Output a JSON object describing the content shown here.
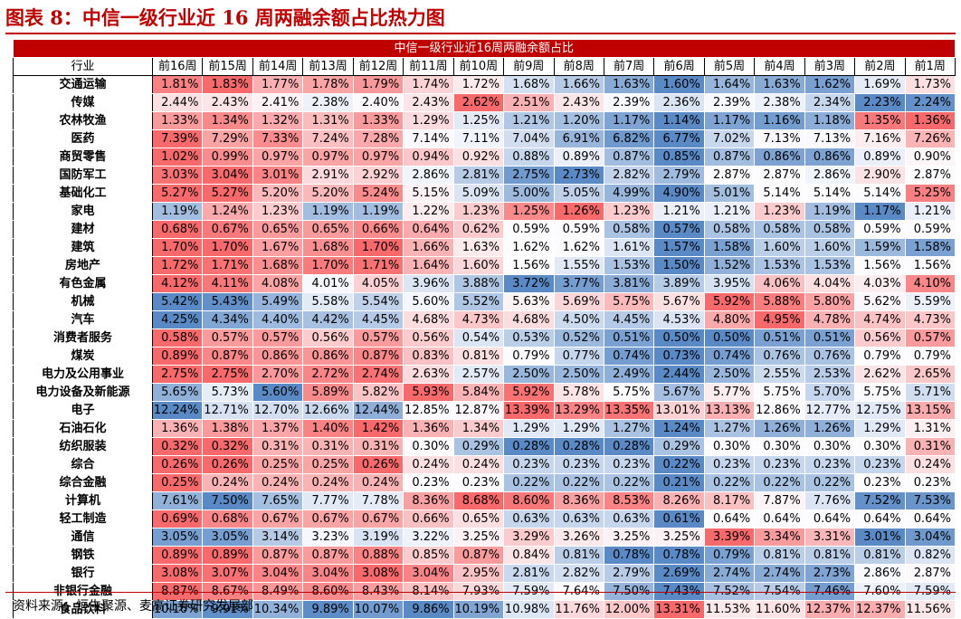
{
  "figure": {
    "title": "图表 8：中信一级行业近 16 周两融余额占比热力图",
    "source": "资料来源：恒生聚源、麦高证券研究发展部"
  },
  "chart_data": {
    "type": "heatmap",
    "title": "中信一级行业近16周两融余额占比",
    "row_header": "行业",
    "columns": [
      "前16周",
      "前15周",
      "前14周",
      "前13周",
      "前12周",
      "前11周",
      "前10周",
      "前9周",
      "前8周",
      "前7周",
      "前6周",
      "前5周",
      "前4周",
      "前3周",
      "前2周",
      "前1周"
    ],
    "color_scale": {
      "high": "#f8696b",
      "mid": "#fcfcff",
      "low": "#5a8ac6",
      "basis": "per-row"
    },
    "rows": [
      {
        "name": "交通运输",
        "values": [
          "1.81%",
          "1.83%",
          "1.77%",
          "1.78%",
          "1.79%",
          "1.74%",
          "1.72%",
          "1.68%",
          "1.66%",
          "1.63%",
          "1.60%",
          "1.64%",
          "1.63%",
          "1.62%",
          "1.69%",
          "1.73%"
        ]
      },
      {
        "name": "传媒",
        "values": [
          "2.44%",
          "2.43%",
          "2.41%",
          "2.38%",
          "2.40%",
          "2.43%",
          "2.62%",
          "2.51%",
          "2.43%",
          "2.39%",
          "2.36%",
          "2.39%",
          "2.38%",
          "2.34%",
          "2.23%",
          "2.24%"
        ]
      },
      {
        "name": "农林牧渔",
        "values": [
          "1.33%",
          "1.34%",
          "1.32%",
          "1.31%",
          "1.33%",
          "1.29%",
          "1.25%",
          "1.21%",
          "1.20%",
          "1.17%",
          "1.14%",
          "1.17%",
          "1.16%",
          "1.18%",
          "1.35%",
          "1.36%"
        ]
      },
      {
        "name": "医药",
        "values": [
          "7.39%",
          "7.29%",
          "7.33%",
          "7.24%",
          "7.28%",
          "7.14%",
          "7.11%",
          "7.04%",
          "6.91%",
          "6.82%",
          "6.77%",
          "7.02%",
          "7.13%",
          "7.13%",
          "7.16%",
          "7.26%"
        ]
      },
      {
        "name": "商贸零售",
        "values": [
          "1.02%",
          "0.99%",
          "0.97%",
          "0.97%",
          "0.97%",
          "0.94%",
          "0.92%",
          "0.88%",
          "0.89%",
          "0.87%",
          "0.85%",
          "0.87%",
          "0.86%",
          "0.86%",
          "0.89%",
          "0.90%"
        ]
      },
      {
        "name": "国防军工",
        "values": [
          "3.03%",
          "3.04%",
          "3.01%",
          "2.91%",
          "2.92%",
          "2.86%",
          "2.81%",
          "2.75%",
          "2.73%",
          "2.82%",
          "2.79%",
          "2.87%",
          "2.87%",
          "2.86%",
          "2.90%",
          "2.87%"
        ]
      },
      {
        "name": "基础化工",
        "values": [
          "5.27%",
          "5.27%",
          "5.20%",
          "5.20%",
          "5.24%",
          "5.15%",
          "5.09%",
          "5.00%",
          "5.05%",
          "4.99%",
          "4.90%",
          "5.01%",
          "5.14%",
          "5.14%",
          "5.14%",
          "5.25%"
        ]
      },
      {
        "name": "家电",
        "values": [
          "1.19%",
          "1.24%",
          "1.23%",
          "1.19%",
          "1.19%",
          "1.22%",
          "1.23%",
          "1.25%",
          "1.26%",
          "1.23%",
          "1.21%",
          "1.21%",
          "1.23%",
          "1.19%",
          "1.17%",
          "1.21%"
        ]
      },
      {
        "name": "建材",
        "values": [
          "0.68%",
          "0.67%",
          "0.65%",
          "0.65%",
          "0.66%",
          "0.64%",
          "0.62%",
          "0.59%",
          "0.59%",
          "0.58%",
          "0.57%",
          "0.58%",
          "0.58%",
          "0.58%",
          "0.59%",
          "0.59%"
        ]
      },
      {
        "name": "建筑",
        "values": [
          "1.70%",
          "1.70%",
          "1.67%",
          "1.68%",
          "1.70%",
          "1.66%",
          "1.63%",
          "1.62%",
          "1.62%",
          "1.61%",
          "1.57%",
          "1.58%",
          "1.60%",
          "1.60%",
          "1.59%",
          "1.58%"
        ]
      },
      {
        "name": "房地产",
        "values": [
          "1.72%",
          "1.71%",
          "1.68%",
          "1.70%",
          "1.71%",
          "1.64%",
          "1.60%",
          "1.56%",
          "1.55%",
          "1.53%",
          "1.50%",
          "1.52%",
          "1.53%",
          "1.53%",
          "1.56%",
          "1.56%"
        ]
      },
      {
        "name": "有色金属",
        "values": [
          "4.12%",
          "4.11%",
          "4.08%",
          "4.01%",
          "4.05%",
          "3.96%",
          "3.88%",
          "3.72%",
          "3.77%",
          "3.81%",
          "3.89%",
          "3.95%",
          "4.06%",
          "4.04%",
          "4.03%",
          "4.10%"
        ]
      },
      {
        "name": "机械",
        "values": [
          "5.42%",
          "5.43%",
          "5.49%",
          "5.58%",
          "5.54%",
          "5.60%",
          "5.52%",
          "5.63%",
          "5.69%",
          "5.75%",
          "5.67%",
          "5.92%",
          "5.88%",
          "5.80%",
          "5.62%",
          "5.59%"
        ]
      },
      {
        "name": "汽车",
        "values": [
          "4.25%",
          "4.34%",
          "4.40%",
          "4.42%",
          "4.45%",
          "4.68%",
          "4.73%",
          "4.68%",
          "4.50%",
          "4.45%",
          "4.53%",
          "4.80%",
          "4.95%",
          "4.78%",
          "4.74%",
          "4.73%"
        ]
      },
      {
        "name": "消费者服务",
        "values": [
          "0.58%",
          "0.57%",
          "0.57%",
          "0.56%",
          "0.57%",
          "0.56%",
          "0.54%",
          "0.53%",
          "0.52%",
          "0.51%",
          "0.50%",
          "0.50%",
          "0.51%",
          "0.51%",
          "0.56%",
          "0.57%"
        ]
      },
      {
        "name": "煤炭",
        "values": [
          "0.89%",
          "0.87%",
          "0.86%",
          "0.86%",
          "0.87%",
          "0.83%",
          "0.81%",
          "0.79%",
          "0.77%",
          "0.74%",
          "0.73%",
          "0.74%",
          "0.76%",
          "0.76%",
          "0.79%",
          "0.79%"
        ]
      },
      {
        "name": "电力及公用事业",
        "values": [
          "2.75%",
          "2.75%",
          "2.70%",
          "2.72%",
          "2.74%",
          "2.63%",
          "2.57%",
          "2.50%",
          "2.50%",
          "2.49%",
          "2.44%",
          "2.50%",
          "2.55%",
          "2.53%",
          "2.62%",
          "2.65%"
        ]
      },
      {
        "name": "电力设备及新能源",
        "values": [
          "5.65%",
          "5.73%",
          "5.60%",
          "5.89%",
          "5.82%",
          "5.93%",
          "5.84%",
          "5.92%",
          "5.78%",
          "5.75%",
          "5.67%",
          "5.77%",
          "5.75%",
          "5.70%",
          "5.75%",
          "5.71%"
        ]
      },
      {
        "name": "电子",
        "values": [
          "12.24%",
          "12.71%",
          "12.70%",
          "12.66%",
          "12.44%",
          "12.85%",
          "12.87%",
          "13.39%",
          "13.29%",
          "13.35%",
          "13.01%",
          "13.13%",
          "12.86%",
          "12.77%",
          "12.75%",
          "13.15%"
        ]
      },
      {
        "name": "石油石化",
        "values": [
          "1.36%",
          "1.38%",
          "1.37%",
          "1.40%",
          "1.42%",
          "1.36%",
          "1.34%",
          "1.29%",
          "1.29%",
          "1.27%",
          "1.24%",
          "1.27%",
          "1.26%",
          "1.26%",
          "1.29%",
          "1.31%"
        ]
      },
      {
        "name": "纺织服装",
        "values": [
          "0.32%",
          "0.32%",
          "0.31%",
          "0.31%",
          "0.31%",
          "0.30%",
          "0.29%",
          "0.28%",
          "0.28%",
          "0.28%",
          "0.29%",
          "0.30%",
          "0.30%",
          "0.30%",
          "0.30%",
          "0.31%"
        ]
      },
      {
        "name": "综合",
        "values": [
          "0.26%",
          "0.26%",
          "0.25%",
          "0.25%",
          "0.26%",
          "0.24%",
          "0.24%",
          "0.23%",
          "0.23%",
          "0.23%",
          "0.22%",
          "0.23%",
          "0.23%",
          "0.23%",
          "0.23%",
          "0.24%"
        ]
      },
      {
        "name": "综合金融",
        "values": [
          "0.25%",
          "0.24%",
          "0.24%",
          "0.24%",
          "0.24%",
          "0.23%",
          "0.23%",
          "0.22%",
          "0.22%",
          "0.22%",
          "0.21%",
          "0.22%",
          "0.22%",
          "0.22%",
          "0.23%",
          "0.23%"
        ]
      },
      {
        "name": "计算机",
        "values": [
          "7.61%",
          "7.50%",
          "7.65%",
          "7.77%",
          "7.78%",
          "8.36%",
          "8.68%",
          "8.60%",
          "8.36%",
          "8.53%",
          "8.26%",
          "8.17%",
          "7.87%",
          "7.76%",
          "7.52%",
          "7.53%"
        ]
      },
      {
        "name": "轻工制造",
        "values": [
          "0.69%",
          "0.68%",
          "0.67%",
          "0.67%",
          "0.67%",
          "0.66%",
          "0.65%",
          "0.63%",
          "0.63%",
          "0.63%",
          "0.61%",
          "0.64%",
          "0.64%",
          "0.64%",
          "0.64%",
          "0.64%"
        ]
      },
      {
        "name": "通信",
        "values": [
          "3.05%",
          "3.05%",
          "3.14%",
          "3.23%",
          "3.19%",
          "3.22%",
          "3.25%",
          "3.29%",
          "3.26%",
          "3.25%",
          "3.25%",
          "3.39%",
          "3.34%",
          "3.31%",
          "3.01%",
          "3.04%"
        ]
      },
      {
        "name": "钢铁",
        "values": [
          "0.89%",
          "0.89%",
          "0.87%",
          "0.87%",
          "0.88%",
          "0.85%",
          "0.87%",
          "0.84%",
          "0.81%",
          "0.78%",
          "0.78%",
          "0.79%",
          "0.81%",
          "0.81%",
          "0.81%",
          "0.82%"
        ]
      },
      {
        "name": "银行",
        "values": [
          "3.08%",
          "3.07%",
          "3.04%",
          "3.04%",
          "3.08%",
          "3.04%",
          "2.95%",
          "2.81%",
          "2.82%",
          "2.79%",
          "2.69%",
          "2.74%",
          "2.74%",
          "2.73%",
          "2.86%",
          "2.87%"
        ]
      },
      {
        "name": "非银行金融",
        "values": [
          "8.87%",
          "8.67%",
          "8.49%",
          "8.60%",
          "8.43%",
          "8.14%",
          "7.93%",
          "7.59%",
          "7.64%",
          "7.50%",
          "7.43%",
          "7.52%",
          "7.54%",
          "7.46%",
          "7.60%",
          "7.59%"
        ]
      },
      {
        "name": "食品饮料",
        "values": [
          "10.16%",
          "9.91%",
          "10.34%",
          "9.89%",
          "10.07%",
          "9.86%",
          "10.19%",
          "10.98%",
          "11.76%",
          "12.00%",
          "13.31%",
          "11.53%",
          "11.60%",
          "12.37%",
          "12.37%",
          "11.56%"
        ]
      }
    ]
  }
}
